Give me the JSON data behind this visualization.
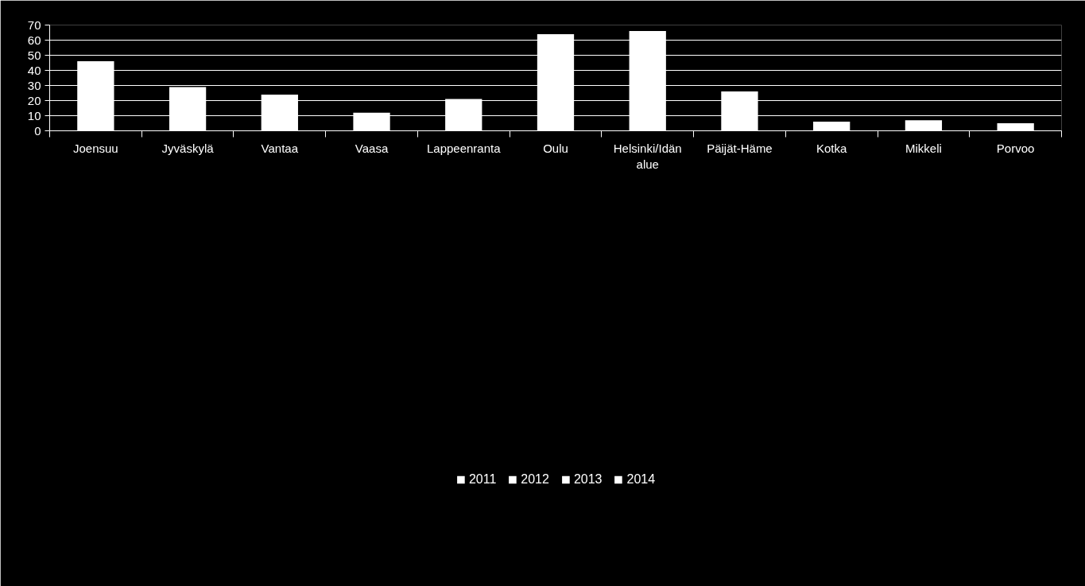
{
  "chart_data": {
    "type": "bar",
    "stacked": true,
    "categories": [
      "Joensuu",
      "Jyväskylä",
      "Vantaa",
      "Vaasa",
      "Lappeenranta",
      "Oulu",
      "Helsinki/Idän alue",
      "Päijät-Häme",
      "Kotka",
      "Mikkeli",
      "Porvoo"
    ],
    "series": [
      {
        "name": "2011",
        "color": "#ffffff",
        "values": [
          46,
          29,
          24,
          12,
          21,
          64,
          66,
          26,
          6,
          7,
          5
        ]
      },
      {
        "name": "2012",
        "color": "#ffffff",
        "values": [
          null,
          null,
          null,
          null,
          null,
          null,
          null,
          null,
          null,
          null,
          null
        ]
      },
      {
        "name": "2013",
        "color": "#ffffff",
        "values": [
          null,
          null,
          null,
          null,
          null,
          null,
          null,
          null,
          null,
          null,
          null
        ]
      },
      {
        "name": "2014",
        "color": "#ffffff",
        "values": [
          null,
          null,
          null,
          null,
          null,
          null,
          null,
          null,
          null,
          null,
          null
        ]
      }
    ],
    "ylim": [
      0,
      70
    ],
    "yticks": [
      0,
      10,
      20,
      30,
      40,
      50,
      60,
      70
    ],
    "grid": "y",
    "legend": "bottom"
  }
}
